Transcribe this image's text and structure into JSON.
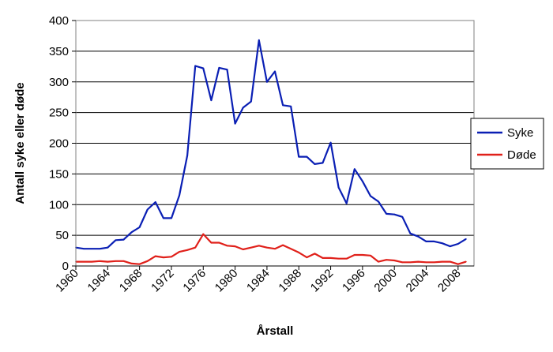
{
  "chart_data": {
    "type": "line",
    "title": "",
    "xlabel": "Årstall",
    "ylabel": "Antall syke eller døde",
    "ylim": [
      0,
      400
    ],
    "yticks": [
      0,
      50,
      100,
      150,
      200,
      250,
      300,
      350,
      400
    ],
    "xlim": [
      1960,
      2010
    ],
    "xticks": [
      1960,
      1964,
      1968,
      1972,
      1976,
      1980,
      1984,
      1988,
      1992,
      1996,
      2000,
      2004,
      2008
    ],
    "grid": "horizontal",
    "legend_position": "right",
    "x": [
      1960,
      1961,
      1962,
      1963,
      1964,
      1965,
      1966,
      1967,
      1968,
      1969,
      1970,
      1971,
      1972,
      1973,
      1974,
      1975,
      1976,
      1977,
      1978,
      1979,
      1980,
      1981,
      1982,
      1983,
      1984,
      1985,
      1986,
      1987,
      1988,
      1989,
      1990,
      1991,
      1992,
      1993,
      1994,
      1995,
      1996,
      1997,
      1998,
      1999,
      2000,
      2001,
      2002,
      2003,
      2004,
      2005,
      2006,
      2007,
      2008,
      2009
    ],
    "series": [
      {
        "name": "Syke",
        "color": "#0a1fb4",
        "values": [
          30,
          28,
          28,
          28,
          30,
          42,
          43,
          55,
          63,
          92,
          104,
          78,
          78,
          115,
          180,
          326,
          322,
          270,
          323,
          320,
          232,
          258,
          268,
          368,
          300,
          317,
          262,
          260,
          178,
          178,
          166,
          168,
          201,
          128,
          102,
          158,
          138,
          114,
          105,
          85,
          84,
          80,
          53,
          48,
          40,
          40,
          37,
          32,
          36,
          44
        ]
      },
      {
        "name": "Døde",
        "color": "#e0201a",
        "values": [
          7,
          7,
          7,
          8,
          7,
          8,
          8,
          4,
          3,
          8,
          16,
          14,
          15,
          23,
          26,
          30,
          52,
          38,
          38,
          33,
          32,
          27,
          30,
          33,
          30,
          28,
          34,
          28,
          22,
          14,
          20,
          13,
          13,
          12,
          12,
          18,
          18,
          17,
          7,
          10,
          9,
          6,
          6,
          7,
          6,
          6,
          7,
          7,
          3,
          7
        ]
      }
    ]
  }
}
